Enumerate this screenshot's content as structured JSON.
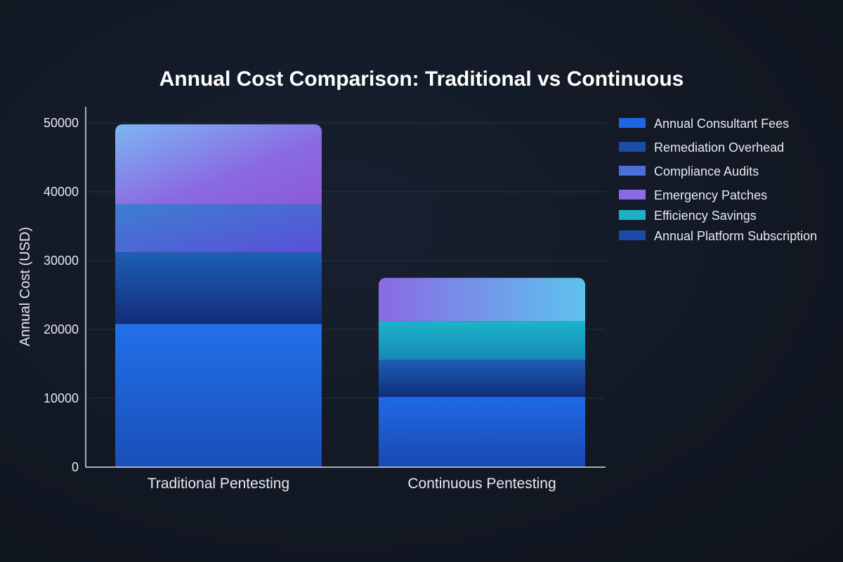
{
  "chart_data": {
    "type": "bar",
    "stacked": true,
    "title": "Annual Cost Comparison: Traditional vs Continuous",
    "xlabel": "",
    "ylabel": "Annual Cost (USD)",
    "ylim": [
      0,
      52000
    ],
    "yticks": [
      0,
      10000,
      20000,
      30000,
      40000,
      50000
    ],
    "grid": true,
    "legend_position": "right",
    "categories": [
      "Traditional Pentesting",
      "Continuous Pentesting"
    ],
    "series": [
      {
        "name": "Annual Consultant Fees",
        "color": "#1f66e5",
        "values": [
          20800,
          0
        ]
      },
      {
        "name": "Remediation Overhead",
        "color": "#1b4fa6",
        "values": [
          10400,
          5400
        ]
      },
      {
        "name": "Compliance Audits",
        "color": "#5a6ee0",
        "values": [
          7000,
          0
        ]
      },
      {
        "name": "Emergency Patches",
        "color": "#8a5ee0",
        "values": [
          11600,
          0
        ]
      },
      {
        "name": "Efficiency Savings",
        "color": "#1aa3c4",
        "values": [
          0,
          5600
        ]
      },
      {
        "name": "Annual Platform Subscription",
        "color": "#1f66e5",
        "values": [
          0,
          10200
        ]
      }
    ],
    "extra_segments": [
      {
        "category": "Continuous Pentesting",
        "value": 6300,
        "color": "#6a8ee8",
        "note": "top segment"
      }
    ]
  }
}
